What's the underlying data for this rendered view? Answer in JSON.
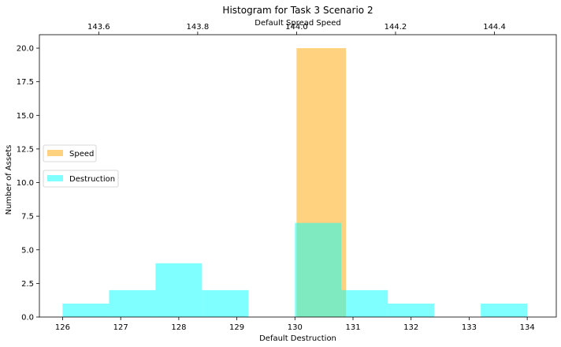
{
  "chart_data": {
    "type": "bar",
    "title": "Histogram for Task 3 Scenario 2",
    "xlabel": "Default Destruction",
    "x2label": "Default Spread Speed",
    "ylabel": "Number of Assets",
    "ylim": [
      0,
      21
    ],
    "xlim": [
      125.6,
      134.5
    ],
    "x2lim": [
      143.48,
      144.525
    ],
    "yticks": [
      "0.0",
      "2.5",
      "5.0",
      "7.5",
      "10.0",
      "12.5",
      "15.0",
      "17.5",
      "20.0"
    ],
    "ytick_values": [
      0,
      2.5,
      5,
      7.5,
      10,
      12.5,
      15,
      17.5,
      20
    ],
    "xticks": [
      "126",
      "127",
      "128",
      "129",
      "130",
      "131",
      "132",
      "133",
      "134"
    ],
    "xtick_values": [
      126,
      127,
      128,
      129,
      130,
      131,
      132,
      133,
      134
    ],
    "x2ticks": [
      "143.6",
      "143.8",
      "144.0",
      "144.2",
      "144.4"
    ],
    "x2tick_values": [
      143.6,
      143.8,
      144.0,
      144.2,
      144.4
    ],
    "grid": false,
    "series": [
      {
        "name": "Speed",
        "axis": "top",
        "color": "#FFA500",
        "opacity": 0.5,
        "bins": [
          [
            144.0,
            144.1,
            20
          ]
        ]
      },
      {
        "name": "Destruction",
        "axis": "bottom",
        "color": "#00FFFF",
        "opacity": 0.5,
        "bins": [
          [
            126.0,
            126.8,
            1
          ],
          [
            126.8,
            127.6,
            2
          ],
          [
            127.6,
            128.4,
            4
          ],
          [
            128.4,
            129.2,
            2
          ],
          [
            129.2,
            130.0,
            0
          ],
          [
            130.0,
            130.8,
            7
          ],
          [
            130.8,
            131.6,
            2
          ],
          [
            131.6,
            132.4,
            1
          ],
          [
            132.4,
            133.2,
            0
          ],
          [
            133.2,
            134.0,
            1
          ]
        ]
      }
    ],
    "legends": [
      {
        "entries": [
          "Speed"
        ],
        "position": "center-left upper"
      },
      {
        "entries": [
          "Destruction"
        ],
        "position": "center-left"
      }
    ]
  }
}
